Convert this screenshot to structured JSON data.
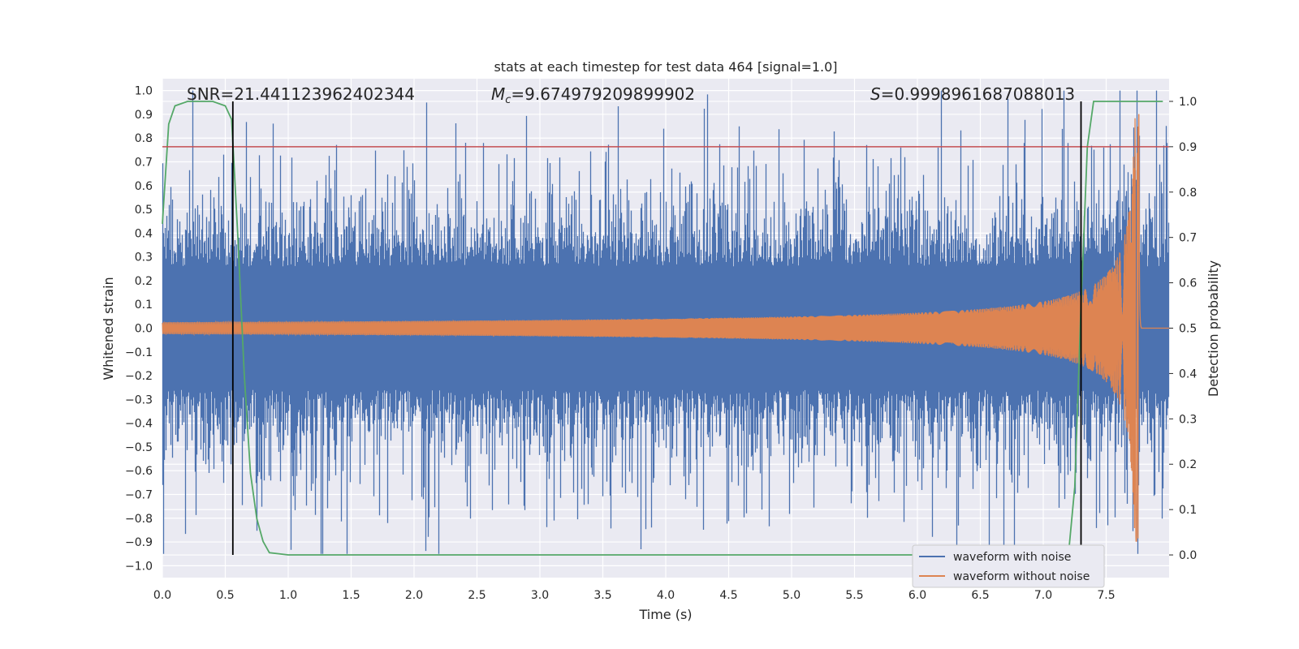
{
  "chart_data": {
    "type": "line",
    "title": "stats at each timestep for test data 464 [signal=1.0]",
    "xlabel": "Time (s)",
    "ylabel_left": "Whitened strain",
    "ylabel_right": "Detection probability",
    "xlim": [
      0,
      8.0
    ],
    "ylim_left": [
      -1.05,
      1.05
    ],
    "ylim_right": [
      -0.05,
      1.05
    ],
    "x_ticks": [
      "0.0",
      "0.5",
      "1.0",
      "1.5",
      "2.0",
      "2.5",
      "3.0",
      "3.5",
      "4.0",
      "4.5",
      "5.0",
      "5.5",
      "6.0",
      "6.5",
      "7.0",
      "7.5"
    ],
    "y_ticks_left": [
      "1.0",
      "0.9",
      "0.8",
      "0.7",
      "0.6",
      "0.5",
      "0.4",
      "0.3",
      "0.2",
      "0.1",
      "0.0",
      "−0.1",
      "−0.2",
      "−0.3",
      "−0.4",
      "−0.5",
      "−0.6",
      "−0.7",
      "−0.8",
      "−0.9",
      "−1.0"
    ],
    "y_ticks_right": [
      "1.0",
      "0.9",
      "0.8",
      "0.7",
      "0.6",
      "0.5",
      "0.4",
      "0.3",
      "0.2",
      "0.1",
      "0.0"
    ],
    "stats": {
      "snr": "SNR=21.441123962402344",
      "mc_symbol": "M",
      "mc_sub": "c",
      "mc_value": "=9.674979209899902",
      "s_symbol": "S",
      "s_value": "=0.9998961687088013"
    },
    "threshold_line": {
      "value": 0.9,
      "axis": "right",
      "color": "#c44e52"
    },
    "vertical_markers": [
      0.56,
      7.3
    ],
    "series": [
      {
        "name": "waveform with noise",
        "color": "#4c72b0",
        "axis": "left",
        "description_values": {
          "t_start": 0.0,
          "t_end": 8.0,
          "approx_amplitude_range": [
            -0.95,
            1.0
          ]
        }
      },
      {
        "name": "waveform without noise",
        "color": "#dd8452",
        "axis": "left",
        "chirp": {
          "t_start": 0.0,
          "t_merger": 7.76,
          "amp_start": 0.025,
          "amp_peak": 0.9,
          "freq_start": 12,
          "freq_merger": 220
        }
      },
      {
        "name": "detection probability",
        "color": "#55a868",
        "axis": "right",
        "x": [
          0.0,
          0.05,
          0.1,
          0.2,
          0.3,
          0.4,
          0.5,
          0.55,
          0.6,
          0.65,
          0.7,
          0.75,
          0.8,
          0.85,
          1.0,
          2.0,
          3.0,
          4.0,
          5.0,
          6.0,
          7.0,
          7.2,
          7.25,
          7.3,
          7.35,
          7.4,
          7.5,
          7.6,
          7.7,
          7.8,
          7.95
        ],
        "values": [
          0.73,
          0.95,
          0.99,
          1.0,
          1.0,
          1.0,
          0.99,
          0.96,
          0.7,
          0.4,
          0.18,
          0.08,
          0.03,
          0.005,
          0.0,
          0.0,
          0.0,
          0.0,
          0.0,
          0.0,
          0.0,
          0.0,
          0.15,
          0.55,
          0.9,
          1.0,
          1.0,
          1.0,
          1.0,
          1.0,
          1.0
        ]
      }
    ],
    "legend": {
      "position": "lower-right",
      "entries": [
        "waveform with noise",
        "waveform without noise"
      ]
    }
  }
}
